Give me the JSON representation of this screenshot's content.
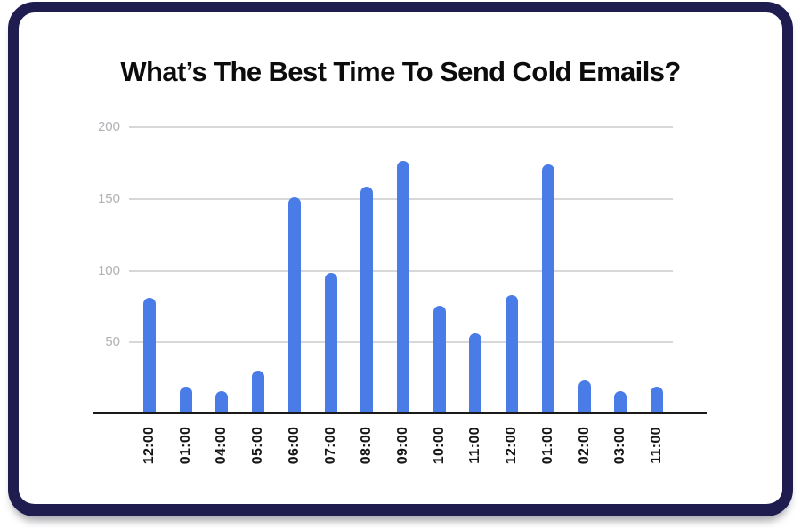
{
  "title": "What’s The Best Time To Send Cold Emails?",
  "colors": {
    "bar": "#4a7ce8",
    "gridline": "#d8d8d8",
    "axis": "#1a1a1a",
    "y_label": "#b1b1b6",
    "x_label": "#161616",
    "title": "#0c0c0d",
    "card_border": "#1f1c4f",
    "card_bg": "#ffffff"
  },
  "chart_data": {
    "type": "bar",
    "title": "What’s The Best Time To Send Cold Emails?",
    "categories": [
      "12:00",
      "01:00",
      "04:00",
      "05:00",
      "06:00",
      "07:00",
      "08:00",
      "09:00",
      "10:00",
      "11:00",
      "12:00",
      "01:00",
      "02:00",
      "03:00",
      "11:00"
    ],
    "values": [
      80,
      18,
      15,
      29,
      150,
      97,
      157,
      175,
      74,
      55,
      82,
      173,
      22,
      15,
      18
    ],
    "xlabel": "",
    "ylabel": "",
    "yticks": [
      50,
      100,
      150,
      200
    ],
    "ylim": [
      0,
      200
    ],
    "grid": true,
    "legend": false,
    "x_tick_rotation": -90,
    "bar_color": "#4a7ce8"
  }
}
